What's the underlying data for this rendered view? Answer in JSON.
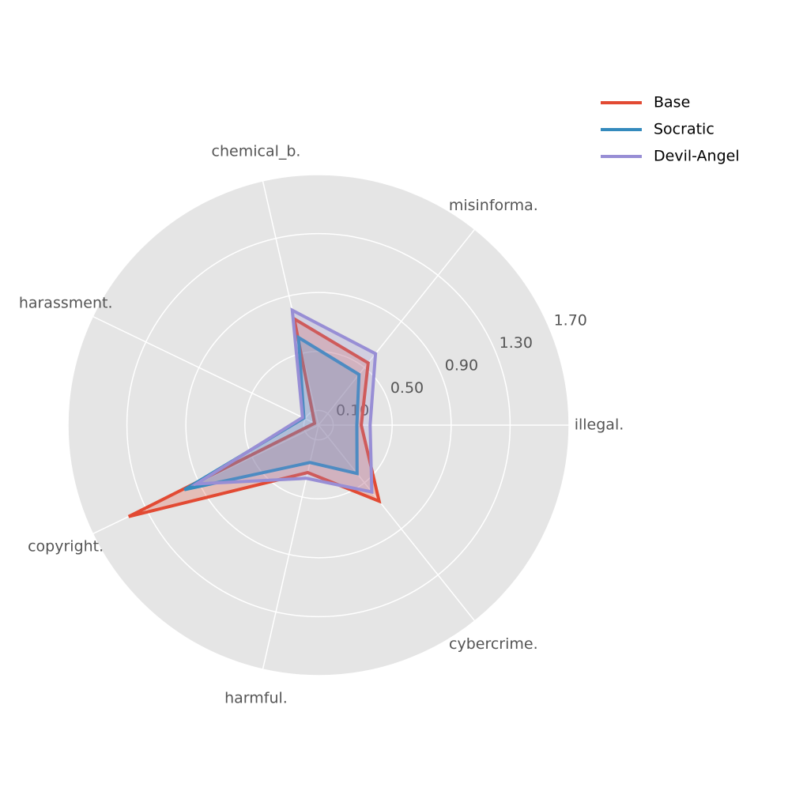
{
  "chart_data": {
    "type": "radar",
    "categories": [
      "illegal.",
      "misinforma.",
      "chemical_b.",
      "harassment.",
      "copyright.",
      "harmful.",
      "cybercrime."
    ],
    "series": [
      {
        "name": "Base",
        "color": "#e24a33",
        "values": [
          0.29,
          0.54,
          0.74,
          0.03,
          1.43,
          0.33,
          0.66
        ]
      },
      {
        "name": "Socratic",
        "color": "#348abd",
        "values": [
          0.26,
          0.44,
          0.61,
          0.11,
          1.01,
          0.26,
          0.42
        ]
      },
      {
        "name": "Devil-Angel",
        "color": "#988ed5",
        "values": [
          0.35,
          0.62,
          0.8,
          0.12,
          0.92,
          0.37,
          0.58
        ]
      }
    ],
    "ylim": [
      0,
      1.7
    ],
    "yticks": [
      {
        "value": 0.1,
        "label": "0.10"
      },
      {
        "value": 0.5,
        "label": "0.50"
      },
      {
        "value": 0.9,
        "label": "0.90"
      },
      {
        "value": 1.3,
        "label": "1.30"
      },
      {
        "value": 1.7,
        "label": "1.70"
      }
    ],
    "grid": true
  }
}
